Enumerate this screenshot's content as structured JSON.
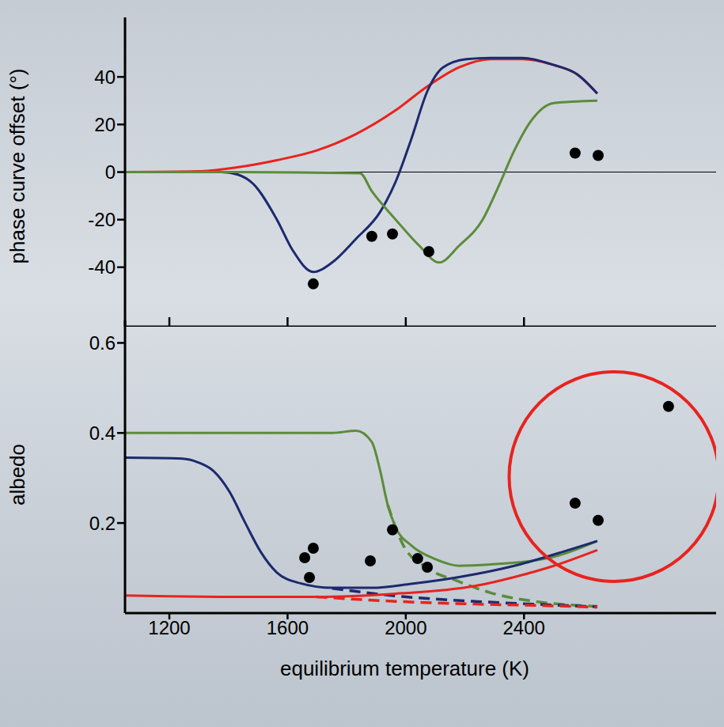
{
  "chart_data": [
    {
      "type": "line",
      "ylabel": "phase curve offset (°)",
      "xlim": [
        1050,
        3050
      ],
      "ylim": [
        -65,
        65
      ],
      "xticks": [
        1200,
        1600,
        2000,
        2400
      ],
      "yticks": [
        -40,
        -20,
        0,
        20,
        40
      ],
      "tick_labels": "y",
      "hlines": [
        0
      ],
      "series": [
        {
          "type": "line",
          "color": "#e8231f",
          "line_style": "solid",
          "x": [
            1050,
            1296,
            1430,
            1564,
            1697,
            1832,
            1966,
            2073,
            2180,
            2287,
            2394,
            2501,
            2581,
            2648
          ],
          "values": [
            0,
            0.3,
            2,
            5,
            9,
            16,
            26,
            36,
            44,
            47.5,
            47.5,
            45,
            41,
            33
          ]
        },
        {
          "type": "line",
          "color": "#1c2a6e",
          "line_style": "solid",
          "x": [
            1050,
            1377,
            1430,
            1484,
            1564,
            1618,
            1687,
            1751,
            1832,
            1912,
            1966,
            2019,
            2073,
            2126,
            2206,
            2287,
            2394,
            2501,
            2581,
            2648
          ],
          "values": [
            0,
            0,
            -1,
            -5,
            -20,
            -33,
            -42,
            -38,
            -28,
            -17,
            -4,
            14,
            34,
            44,
            47.5,
            48,
            48,
            45,
            41,
            33
          ]
        },
        {
          "type": "line",
          "color": "#5b8c3a",
          "line_style": "solid",
          "x": [
            1050,
            1430,
            1845,
            1885,
            1966,
            2046,
            2113,
            2180,
            2260,
            2314,
            2367,
            2421,
            2501,
            2648
          ],
          "values": [
            0,
            0,
            -0.5,
            -8,
            -20,
            -31,
            -38,
            -31,
            -20,
            -6,
            9,
            21,
            29,
            30
          ]
        },
        {
          "type": "scatter",
          "color": "#000000",
          "marker": "circle",
          "x": [
            1687,
            1885,
            1955,
            2078,
            2573,
            2651
          ],
          "values": [
            -47,
            -27,
            -26,
            -33.4,
            8,
            7
          ]
        }
      ]
    },
    {
      "type": "line",
      "ylabel": "albedo",
      "xlabel": "equilibrium temperature (K)",
      "xlim": [
        1050,
        3050
      ],
      "ylim": [
        0,
        0.65
      ],
      "xticks": [
        1200,
        1600,
        2000,
        2400
      ],
      "yticks": [
        0.2,
        0.4,
        0.6
      ],
      "series": [
        {
          "type": "line",
          "color": "#5b8c3a",
          "line_style": "solid",
          "x": [
            1050,
            1430,
            1751,
            1832,
            1885,
            1912,
            1939,
            1966,
            2019,
            2099,
            2180,
            2287,
            2501,
            2648
          ],
          "values": [
            0.4,
            0.4,
            0.4,
            0.405,
            0.38,
            0.32,
            0.24,
            0.19,
            0.15,
            0.12,
            0.105,
            0.108,
            0.125,
            0.16
          ]
        },
        {
          "type": "line",
          "color": "#5b8c3a",
          "line_style": "dashed",
          "x": [
            1939,
            1992,
            2073,
            2180,
            2287,
            2447,
            2648
          ],
          "values": [
            0.24,
            0.15,
            0.1,
            0.07,
            0.045,
            0.025,
            0.015
          ]
        },
        {
          "type": "line",
          "color": "#1c2a6e",
          "line_style": "solid",
          "x": [
            1050,
            1243,
            1296,
            1350,
            1403,
            1457,
            1510,
            1564,
            1644,
            1751,
            1885,
            2019,
            2180,
            2367,
            2501,
            2648
          ],
          "values": [
            0.345,
            0.343,
            0.335,
            0.315,
            0.27,
            0.2,
            0.135,
            0.09,
            0.066,
            0.056,
            0.056,
            0.065,
            0.08,
            0.105,
            0.13,
            0.16
          ]
        },
        {
          "type": "line",
          "color": "#1c2a6e",
          "line_style": "dashed",
          "x": [
            1751,
            1966,
            2233,
            2501,
            2648
          ],
          "values": [
            0.055,
            0.038,
            0.026,
            0.018,
            0.014
          ]
        },
        {
          "type": "line",
          "color": "#e8231f",
          "line_style": "solid",
          "x": [
            1050,
            1430,
            1697,
            1966,
            2233,
            2367,
            2501,
            2648
          ],
          "values": [
            0.039,
            0.036,
            0.036,
            0.043,
            0.06,
            0.08,
            0.105,
            0.14
          ]
        },
        {
          "type": "line",
          "color": "#e8231f",
          "line_style": "dashed",
          "x": [
            1697,
            1966,
            2233,
            2501,
            2648
          ],
          "values": [
            0.036,
            0.026,
            0.02,
            0.016,
            0.013
          ]
        },
        {
          "type": "scatter",
          "color": "#000000",
          "marker": "circle",
          "x": [
            1658,
            1687,
            1674,
            1880,
            1955,
            2040,
            2073,
            2573,
            2651,
            2889
          ],
          "values": [
            0.123,
            0.144,
            0.079,
            0.116,
            0.185,
            0.121,
            0.102,
            0.244,
            0.206,
            0.459
          ],
          "circled": [
            false,
            false,
            false,
            false,
            false,
            false,
            false,
            true,
            true,
            true
          ]
        }
      ]
    }
  ]
}
